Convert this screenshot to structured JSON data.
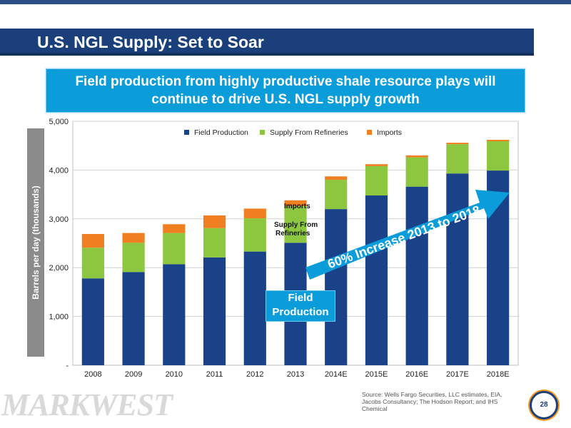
{
  "slide": {
    "title": "U.S. NGL Supply: Set to Soar",
    "banner_line1": "Field production from highly productive shale resource plays will",
    "banner_line2": "continue to drive U.S. NGL supply growth",
    "logo_text": "MARKWEST",
    "source_text": "Source: Wells Fargo Securities, LLC estimates, EIA, Jacobs Consultancy; The Hodson Report; and IHS Chemical",
    "page_number": "28"
  },
  "annotations": {
    "imports_label": "Imports",
    "supply_label_line1": "Supply From",
    "supply_label_line2": "Refineries",
    "field_label_line1": "Field",
    "field_label_line2": "Production",
    "arrow_text": "60% Increase 2013 to 2018"
  },
  "colors": {
    "field": "#1a4289",
    "refineries": "#8dc63f",
    "imports": "#f07f22",
    "accent": "#0b9cda"
  },
  "chart_data": {
    "type": "bar",
    "stacked": true,
    "ylabel": "Barrels per day (thousands)",
    "ylim": [
      0,
      5000
    ],
    "yticks": [
      "-",
      "1,000",
      "2,000",
      "3,000",
      "4,000",
      "5,000"
    ],
    "categories": [
      "2008",
      "2009",
      "2010",
      "2011",
      "2012",
      "2013",
      "2014E",
      "2015E",
      "2016E",
      "2017E",
      "2018E"
    ],
    "legend_position": "top",
    "series": [
      {
        "name": "Field Production",
        "values": [
          1780,
          1910,
          2070,
          2210,
          2330,
          2510,
          3200,
          3480,
          3660,
          3930,
          3990
        ]
      },
      {
        "name": "Supply From Refineries",
        "values": [
          630,
          600,
          640,
          600,
          680,
          750,
          600,
          600,
          600,
          600,
          600
        ]
      },
      {
        "name": "Imports",
        "values": [
          280,
          200,
          180,
          260,
          200,
          120,
          70,
          40,
          40,
          30,
          30
        ]
      }
    ]
  }
}
